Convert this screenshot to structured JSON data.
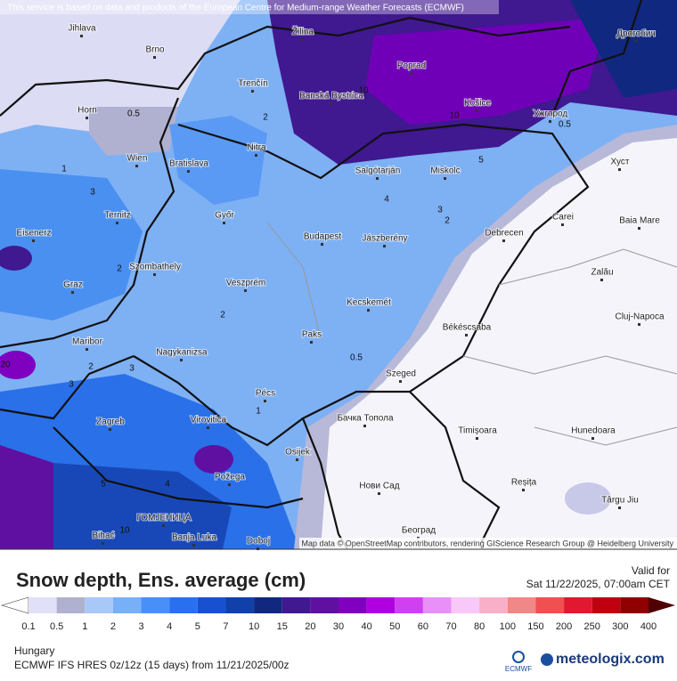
{
  "header": {
    "notice": "This service is based on data and products of the European Centre for Medium-range Weather Forecasts (ECMWF)"
  },
  "map": {
    "cities": [
      "Jihlava",
      "Brno",
      "Žilina",
      "Poprad",
      "Дрогобич",
      "Trenčín",
      "Banská Bystrica",
      "Košice",
      "Ужгород",
      "Horn",
      "Wien",
      "Bratislava",
      "Nitra",
      "Salgótarján",
      "Miskolc",
      "Хуст",
      "Ternitz",
      "Győr",
      "Eisenerz",
      "Carei",
      "Baia Mare",
      "Budapest",
      "Jászberény",
      "Debrecen",
      "Szombathely",
      "Graz",
      "Veszprém",
      "Zalău",
      "Kecskemét",
      "Cluj-Napoca",
      "Maribor",
      "Paks",
      "Békéscsaba",
      "Nagykanizsa",
      "Szeged",
      "Pécs",
      "Virovitica",
      "Бачка Топола",
      "Zagreb",
      "Timișoara",
      "Hunedoara",
      "Osijek",
      "Požega",
      "Нови Сад",
      "Reșița",
      "Târgu Jiu",
      "ГОМЈЕНИЦА",
      "Bihać",
      "Banja Luka",
      "Doboj",
      "Београд"
    ],
    "contour_labels": [
      "0.5",
      "1",
      "3",
      "2",
      "2",
      "2",
      "2",
      "3",
      "3",
      "1",
      "0.5",
      "4",
      "3",
      "2",
      "0.5",
      "10",
      "10",
      "5",
      "5",
      "4",
      "10",
      "20"
    ],
    "attribution": "Map data © OpenStreetMap contributors, rendering GIScience Research Group @ Heidelberg University"
  },
  "footer": {
    "title": "Snow depth, Ens. average (cm)",
    "valid_label": "Valid for",
    "valid_time": "Sat 11/22/2025, 07:00am CET",
    "region": "Hungary",
    "model": "ECMWF IFS HRES 0z/12z (15 days) from 11/21/2025/00z",
    "logo": "ECMWF",
    "brand": "meteologix.com"
  },
  "colorbar": {
    "levels": [
      0.1,
      0.5,
      1,
      2,
      3,
      4,
      5,
      7,
      10,
      15,
      20,
      30,
      40,
      50,
      60,
      70,
      80,
      100,
      150,
      200,
      250,
      300,
      400
    ],
    "colors": [
      "#ffffff",
      "#e0e0f8",
      "#b0b0d0",
      "#a8c8f8",
      "#78b0f8",
      "#4890f8",
      "#2870f0",
      "#1850d0",
      "#1040a8",
      "#102880",
      "#401890",
      "#6010a0",
      "#8000c0",
      "#b000e0",
      "#d040f0",
      "#e890f8",
      "#f8c8f8",
      "#f8b0c8",
      "#f08888",
      "#f05050",
      "#e01830",
      "#c00010",
      "#900000",
      "#500000"
    ]
  }
}
